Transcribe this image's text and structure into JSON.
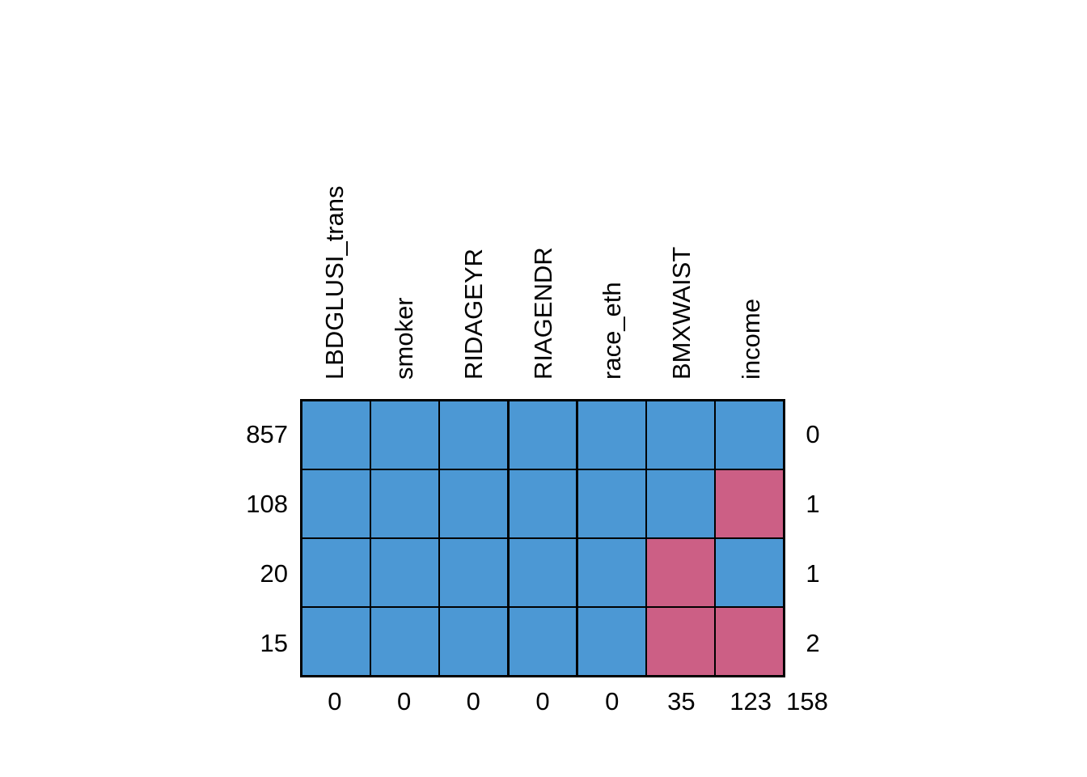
{
  "figure": {
    "background": "#ffffff"
  },
  "chart_data": {
    "type": "heatmap",
    "variant": "missing-data-pattern",
    "columns": [
      "LBDGLUSI_trans",
      "smoker",
      "RIDAGEYR",
      "RIAGENDR",
      "race_eth",
      "BMXWAIST",
      "income"
    ],
    "rows": [
      {
        "count": "857",
        "pattern": [
          1,
          1,
          1,
          1,
          1,
          1,
          1
        ],
        "n_missing": "0"
      },
      {
        "count": "108",
        "pattern": [
          1,
          1,
          1,
          1,
          1,
          1,
          0
        ],
        "n_missing": "1"
      },
      {
        "count": "20",
        "pattern": [
          1,
          1,
          1,
          1,
          1,
          0,
          1
        ],
        "n_missing": "1"
      },
      {
        "count": "15",
        "pattern": [
          1,
          1,
          1,
          1,
          1,
          0,
          0
        ],
        "n_missing": "2"
      }
    ],
    "column_missing_totals": [
      "0",
      "0",
      "0",
      "0",
      "0",
      "35",
      "123"
    ],
    "grand_total_missing": "158",
    "colors": {
      "observed": "#4C98D4",
      "missing": "#CC5F85",
      "grid_line": "#000000",
      "text": "#000000"
    },
    "legend_semantics": {
      "observed": "blue cell = value observed",
      "missing": "red cell = value missing"
    }
  }
}
